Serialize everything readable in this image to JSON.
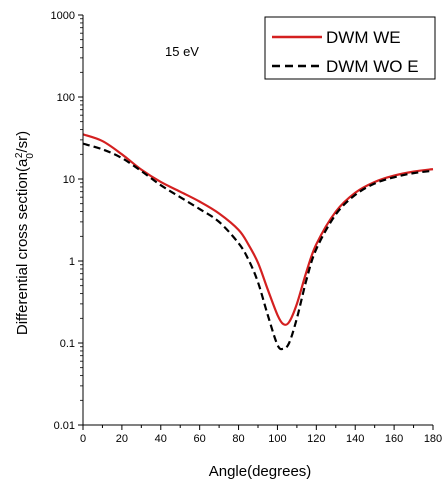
{
  "chart_data": {
    "type": "line",
    "xlabel": "Angle(degrees)",
    "ylabel_base": "Differential cross section(a",
    "ylabel_sub": "0",
    "ylabel_sup": "2",
    "ylabel_tail": "/sr)",
    "annotation": "15 eV",
    "xlim": [
      0,
      180
    ],
    "ylim": [
      0.01,
      1000
    ],
    "yscale": "log",
    "x_ticks": [
      0,
      20,
      40,
      60,
      80,
      100,
      120,
      140,
      160,
      180
    ],
    "y_ticks": [
      0.01,
      0.1,
      1,
      10,
      100,
      1000
    ],
    "y_tick_labels": [
      "0.01",
      "0.1",
      "1",
      "10",
      "100",
      "1000"
    ],
    "legend_position": "top-right",
    "series": [
      {
        "name": "DWM  WE",
        "color": "#d42020",
        "style": "solid",
        "x": [
          0,
          10,
          20,
          30,
          40,
          50,
          60,
          70,
          80,
          85,
          90,
          95,
          100,
          103,
          106,
          110,
          115,
          120,
          130,
          140,
          150,
          160,
          170,
          180
        ],
        "y": [
          35,
          29,
          20,
          13,
          9.2,
          7.0,
          5.3,
          3.8,
          2.4,
          1.6,
          0.95,
          0.45,
          0.22,
          0.17,
          0.18,
          0.3,
          0.75,
          1.6,
          4.0,
          6.8,
          9.2,
          11.0,
          12.3,
          13.2
        ]
      },
      {
        "name": "DWM WO E",
        "color": "#000000",
        "style": "dashed",
        "x": [
          0,
          10,
          20,
          30,
          40,
          50,
          60,
          70,
          80,
          85,
          90,
          95,
          100,
          103,
          106,
          110,
          115,
          120,
          130,
          140,
          150,
          160,
          170,
          180
        ],
        "y": [
          27,
          23,
          18,
          12.5,
          8.4,
          6.0,
          4.3,
          3.0,
          1.65,
          1.05,
          0.55,
          0.22,
          0.095,
          0.085,
          0.1,
          0.2,
          0.6,
          1.4,
          3.7,
          6.4,
          8.8,
          10.5,
          11.8,
          12.6
        ]
      }
    ]
  }
}
